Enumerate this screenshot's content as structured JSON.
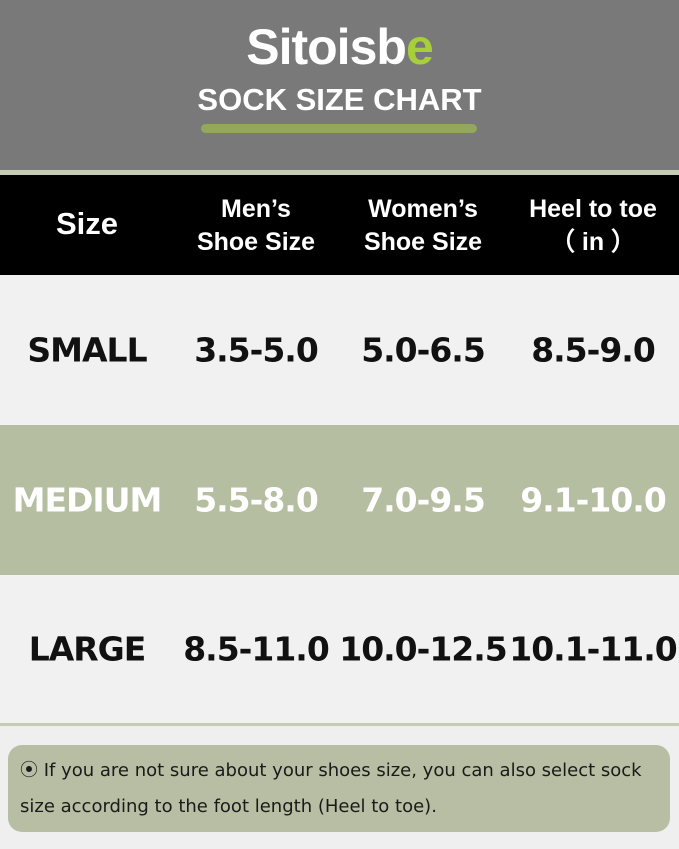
{
  "header": {
    "brand_part1": "Sitois",
    "brand_part2": "b",
    "brand_part3": "e",
    "title": "SOCK SIZE CHART"
  },
  "colors": {
    "header_bg": "#797979",
    "accent_green": "#a6cf3a",
    "medium_row_bg": "#b5bea0",
    "table_header_bg": "#000000"
  },
  "table": {
    "columns": [
      "Size",
      "Men’s\nShoe Size",
      "Women’s\nShoe Size",
      "Heel to toe\n（ in ）"
    ],
    "col_lines": [
      [
        "Size"
      ],
      [
        "Men’s",
        "Shoe Size"
      ],
      [
        "Women’s",
        "Shoe Size"
      ],
      [
        "Heel to toe",
        "（ in ）"
      ]
    ],
    "rows": [
      {
        "size": "SMALL",
        "men": "3.5-5.0",
        "women": "5.0-6.5",
        "heel_to_toe": "8.5-9.0"
      },
      {
        "size": "MEDIUM",
        "men": "5.5-8.0",
        "women": "7.0-9.5",
        "heel_to_toe": "9.1-10.0"
      },
      {
        "size": "LARGE",
        "men": "8.5-11.0",
        "women": "10.0-12.5",
        "heel_to_toe": "10.1-11.0"
      }
    ]
  },
  "note": {
    "icon": "radio-dot-icon",
    "text": "If you are not sure about your shoes size, you can also select sock size according to the foot length (Heel to toe)."
  }
}
